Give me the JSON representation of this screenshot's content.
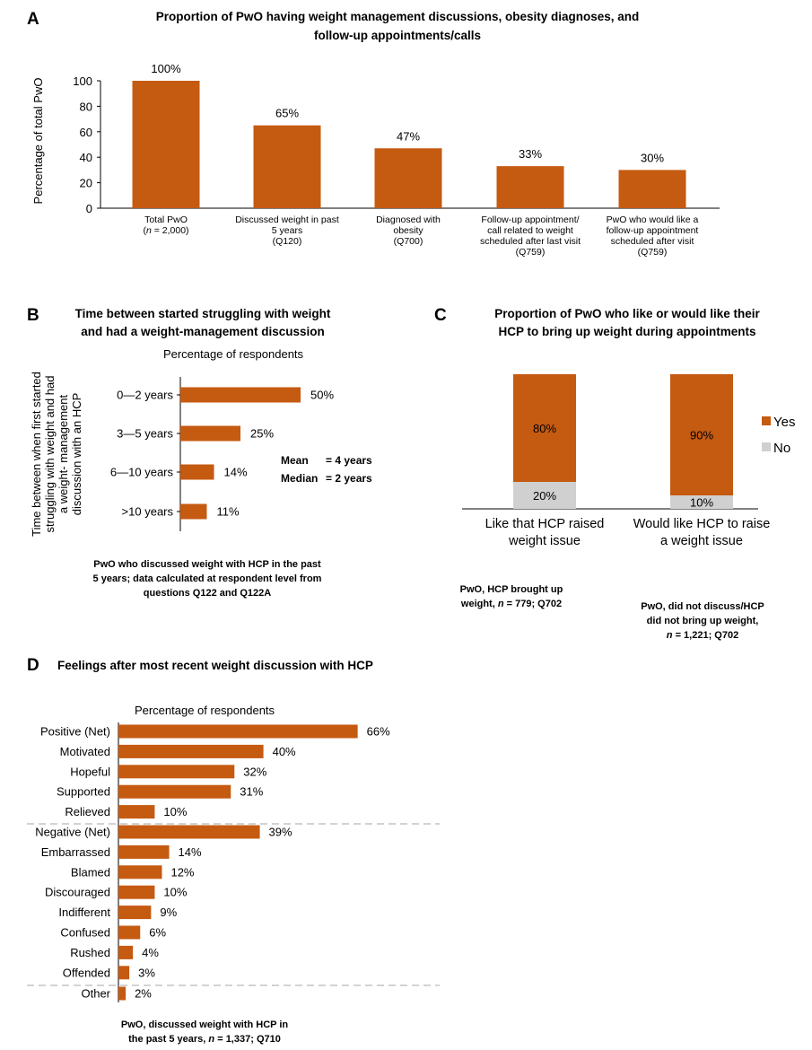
{
  "colors": {
    "bar": "#c55a11",
    "no": "#d0d0d0",
    "axis": "#000000",
    "divider": "#a6a6a6"
  },
  "panel_a": {
    "label": "A",
    "title_lines": [
      "Proportion of PwO having weight management discussions, obesity diagnoses, and",
      "follow-up appointments/calls"
    ]
  },
  "panel_b": {
    "label": "B",
    "title_lines": [
      "Time between started struggling with weight",
      "and had a weight-management discussion"
    ],
    "ylabel_lines": [
      "Time between when first started",
      "struggling with weight and had",
      "a weight- management",
      "discussion with an HCP"
    ],
    "xlabel": "Percentage of respondents",
    "mean_label": "Mean",
    "mean_value": "= 4 years",
    "median_label": "Median",
    "median_value": "= 2 years",
    "note_lines": [
      "PwO who discussed weight with HCP in the past",
      "5 years; data calculated at respondent level from",
      "questions Q122 and Q122A"
    ]
  },
  "panel_c": {
    "label": "C",
    "title_lines": [
      "Proportion of PwO who like or would like their",
      "HCP to bring up weight during appointments"
    ],
    "notes": [
      {
        "lines": [
          [
            "PwO, HCP brought up",
            ""
          ],
          [
            "weight, ",
            "n",
            " = 779; Q702"
          ]
        ]
      },
      {
        "lines": [
          [
            "PwO, did not discuss/HCP",
            ""
          ],
          [
            "did not bring up weight,",
            ""
          ],
          [
            "",
            "n",
            " = 1,221; Q702"
          ]
        ]
      }
    ]
  },
  "panel_d": {
    "label": "D",
    "title_lines": [
      "Feelings after most recent weight discussion with HCP"
    ],
    "xlabel": "Percentage of respondents",
    "note_line1": "PwO, discussed weight with HCP in",
    "note_line2_pre": "the past 5 years, ",
    "note_line2_n": "n",
    "note_line2_post": " = 1,337; Q710"
  },
  "chart_data": [
    {
      "type": "bar",
      "title": "Proportion of PwO having weight management discussions, obesity diagnoses, and follow-up appointments/calls",
      "ylabel": "Percentage of total PwO",
      "ylim": [
        0,
        100
      ],
      "yticks": [
        0,
        20,
        40,
        60,
        80,
        100
      ],
      "categories": [
        [
          "Total PwO",
          "(n = 2,000)"
        ],
        [
          "Discussed weight in past",
          "5 years",
          "(Q120)"
        ],
        [
          "Diagnosed with",
          "obesity",
          "(Q700)"
        ],
        [
          "Follow-up appointment/",
          "call related to weight",
          "scheduled after last visit",
          "(Q759)"
        ],
        [
          "PwO who would like a",
          "follow-up appointment",
          "scheduled after visit",
          "(Q759)"
        ]
      ],
      "values": [
        100,
        65,
        47,
        33,
        30
      ],
      "value_labels": [
        "100%",
        "65%",
        "47%",
        "33%",
        "30%"
      ]
    },
    {
      "type": "bar",
      "orientation": "horizontal",
      "title": "Time between started struggling with weight and had a weight-management discussion",
      "xlabel": "Percentage of respondents",
      "categories": [
        "0—2 years",
        "3—5 years",
        "6—10 years",
        ">10 years"
      ],
      "values": [
        50,
        25,
        14,
        11
      ],
      "value_labels": [
        "50%",
        "25%",
        "14%",
        "11%"
      ]
    },
    {
      "type": "bar",
      "stacked": true,
      "title": "Proportion of PwO who like or would like their HCP to bring up weight during appointments",
      "categories": [
        [
          "Like that HCP raised",
          "weight issue"
        ],
        [
          "Would like HCP to raise",
          "a weight issue"
        ]
      ],
      "series": [
        {
          "name": "Yes",
          "values": [
            80,
            90
          ],
          "value_labels": [
            "80%",
            "90%"
          ]
        },
        {
          "name": "No",
          "values": [
            20,
            10
          ],
          "value_labels": [
            "20%",
            "10%"
          ]
        }
      ],
      "ylim": [
        0,
        100
      ],
      "legend": "right"
    },
    {
      "type": "bar",
      "orientation": "horizontal",
      "title": "Feelings after most recent weight discussion with HCP",
      "xlabel": "Percentage of respondents",
      "categories": [
        "Positive (Net)",
        "Motivated",
        "Hopeful",
        "Supported",
        "Relieved",
        "Negative (Net)",
        "Embarrassed",
        "Blamed",
        "Discouraged",
        "Indifferent",
        "Confused",
        "Rushed",
        "Offended",
        "Other"
      ],
      "values": [
        66,
        40,
        32,
        31,
        10,
        39,
        14,
        12,
        10,
        9,
        6,
        4,
        3,
        2
      ],
      "value_labels": [
        "66%",
        "40%",
        "32%",
        "31%",
        "10%",
        "39%",
        "14%",
        "12%",
        "10%",
        "9%",
        "6%",
        "4%",
        "3%",
        "2%"
      ]
    }
  ]
}
